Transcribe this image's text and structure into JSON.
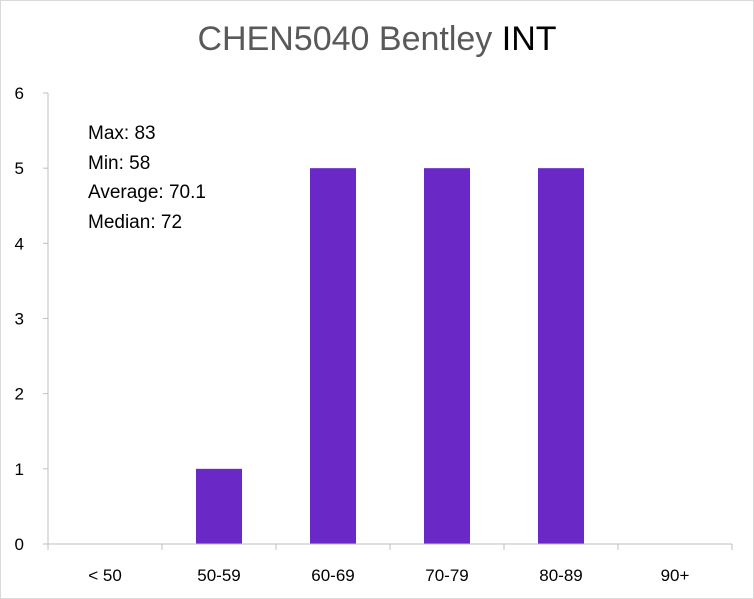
{
  "chart_data": {
    "type": "bar",
    "title_part1": "CHEN5040 Bentley",
    "title_part2": "INT",
    "categories": [
      "< 50",
      "50-59",
      "60-69",
      "70-79",
      "80-89",
      "90+"
    ],
    "values": [
      0,
      1,
      5,
      5,
      5,
      0
    ],
    "ylim": [
      0,
      6
    ],
    "yticks": [
      "0",
      "1",
      "2",
      "3",
      "4",
      "5",
      "6"
    ],
    "grid": false,
    "bar_color": "#6a29c6",
    "stats": {
      "max": "Max: 83",
      "min": "Min: 58",
      "average": "Average: 70.1",
      "median": "Median: 72"
    }
  }
}
